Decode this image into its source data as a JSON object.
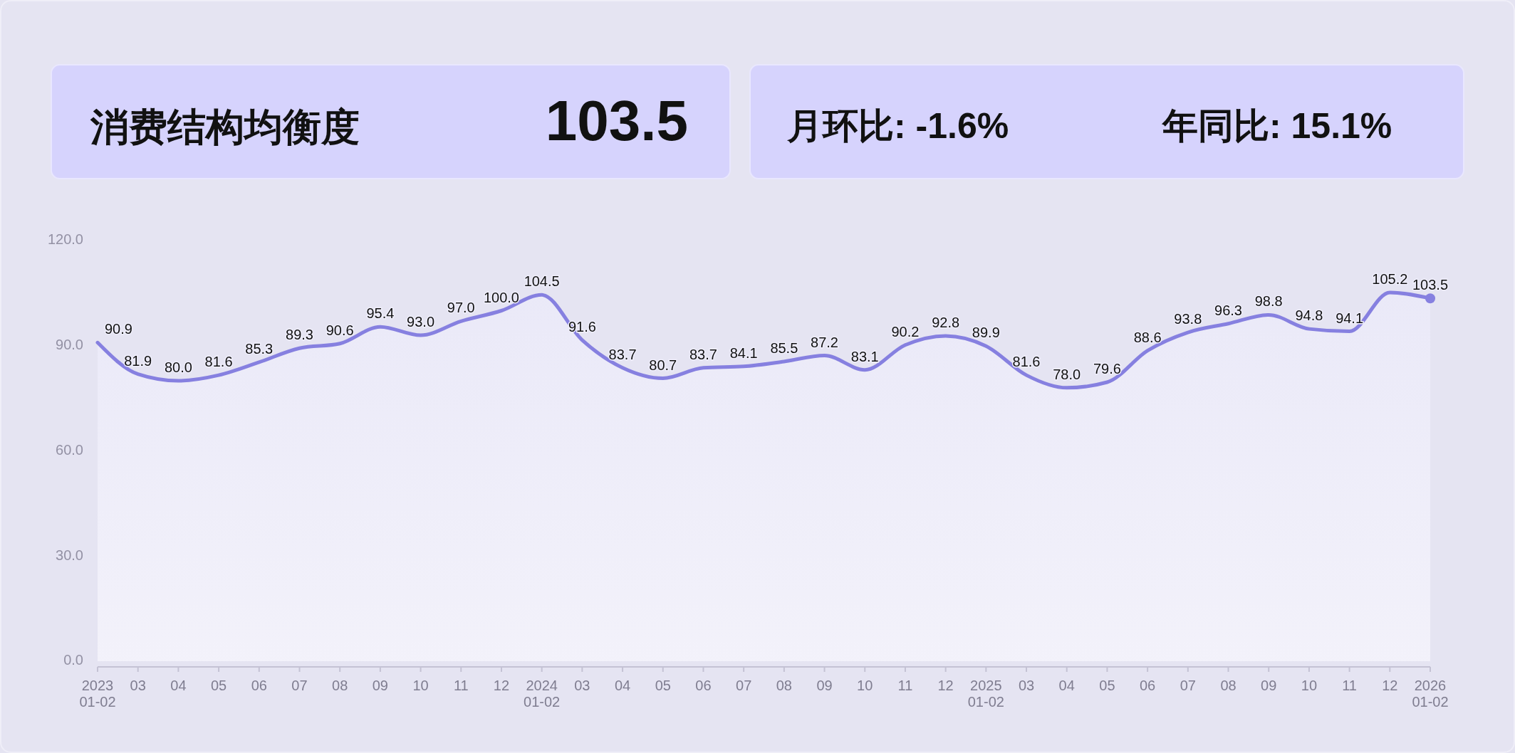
{
  "chart_data": [
    {
      "type": "other",
      "title": "消费结构均衡度",
      "annotations": [
        "103.5"
      ]
    },
    {
      "type": "other",
      "annotations": [
        "月环比: -1.6%",
        "年同比: 15.1%"
      ]
    },
    {
      "type": "area",
      "categories": [
        "2023\n01-02",
        "03",
        "04",
        "05",
        "06",
        "07",
        "08",
        "09",
        "10",
        "11",
        "12",
        "2024\n01-02",
        "03",
        "04",
        "05",
        "06",
        "07",
        "08",
        "09",
        "10",
        "11",
        "12",
        "2025\n01-02",
        "03",
        "04",
        "05",
        "06",
        "07",
        "08",
        "09",
        "10",
        "11",
        "12",
        "2026\n01-02"
      ],
      "series": [
        {
          "type": "area",
          "color": "#8680e0",
          "values": [
            90.9,
            81.9,
            80.0,
            81.6,
            85.3,
            89.3,
            90.6,
            95.4,
            93.0,
            97.0,
            100.0,
            104.5,
            91.6,
            83.7,
            80.7,
            83.7,
            84.1,
            85.5,
            87.2,
            83.1,
            90.2,
            92.8,
            89.9,
            81.6,
            78.0,
            79.6,
            88.6,
            93.8,
            96.3,
            98.8,
            94.8,
            94.1,
            105.2,
            103.5
          ],
          "value_labels": [
            "90.9",
            "81.9",
            "80.0",
            "81.6",
            "85.3",
            "89.3",
            "90.6",
            "95.4",
            "93.0",
            "97.0",
            "100.0",
            "104.5",
            "91.6",
            "83.7",
            "80.7",
            "83.7",
            "84.1",
            "85.5",
            "87.2",
            "83.1",
            "90.2",
            "92.8",
            "89.9",
            "81.6",
            "78.0",
            "79.6",
            "88.6",
            "93.8",
            "96.3",
            "98.8",
            "94.8",
            "94.1",
            "105.2",
            "103.5"
          ]
        },
        {
          "type": "scatter",
          "color": "#8680e0",
          "x": [
            "2026\n01-02"
          ],
          "values": [
            103.5
          ]
        }
      ],
      "ylim": [
        0,
        120
      ],
      "yticks": [
        {
          "value": 0,
          "label": "0.0"
        },
        {
          "value": 30,
          "label": "30.0"
        },
        {
          "value": 60,
          "label": "60.0"
        },
        {
          "value": 90,
          "label": "90.0"
        },
        {
          "value": 120,
          "label": "120.0"
        }
      ]
    }
  ]
}
